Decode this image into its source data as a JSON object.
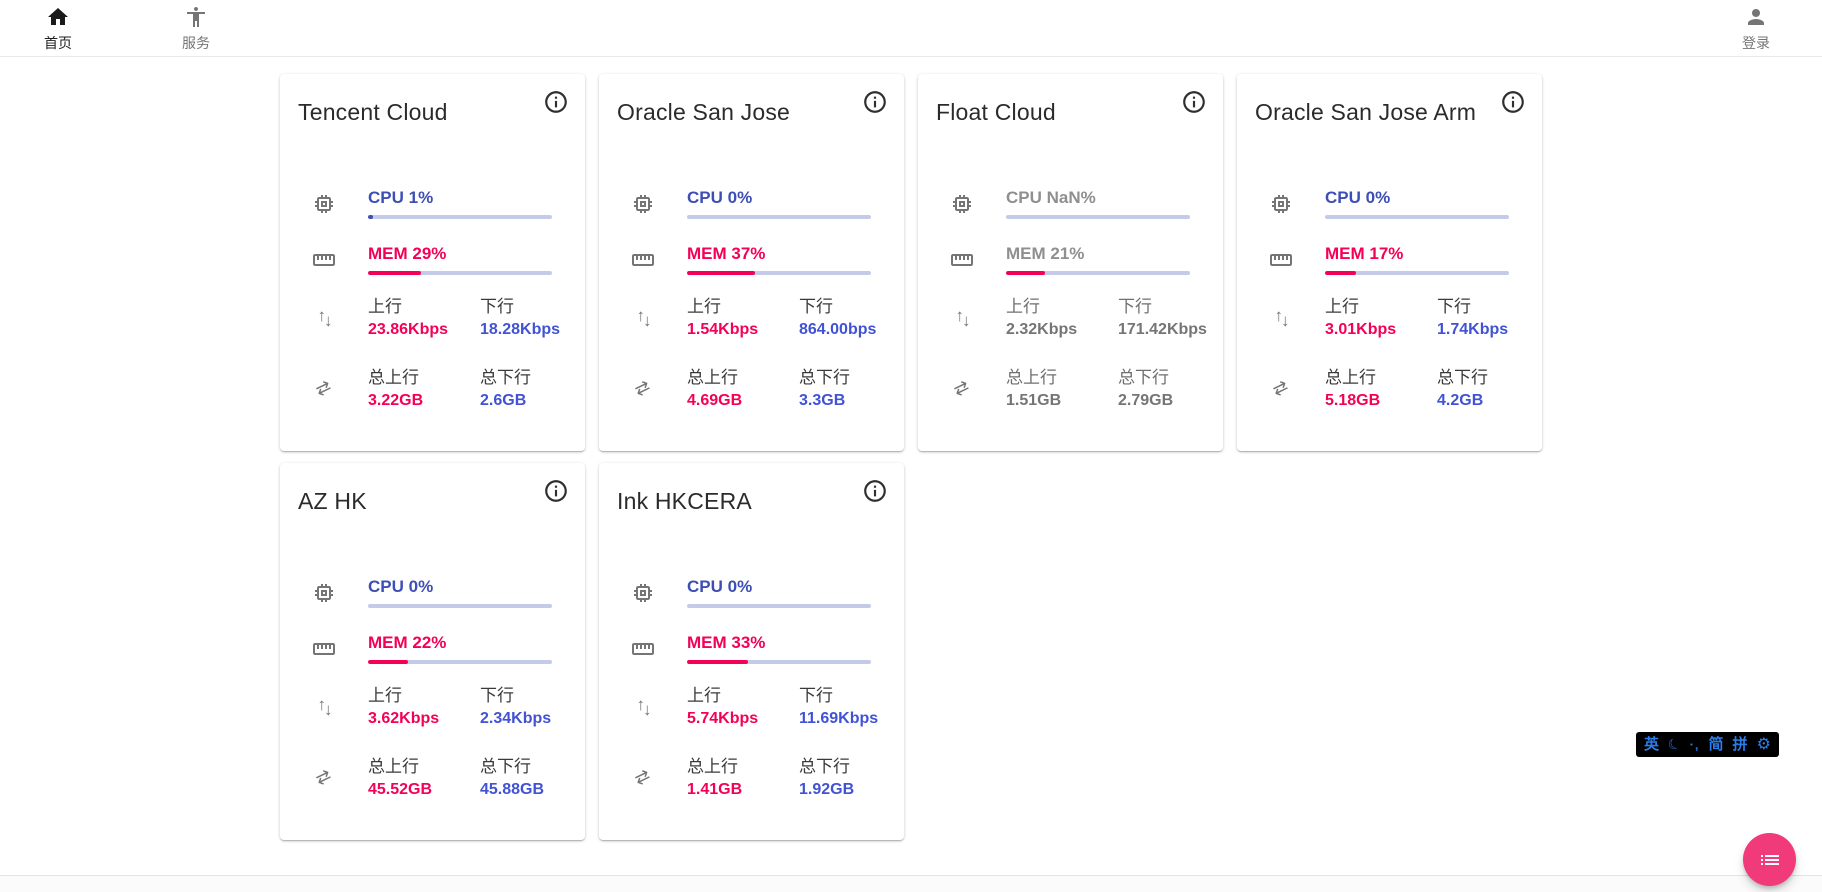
{
  "navbar": {
    "home": {
      "label": "首页"
    },
    "services": {
      "label": "服务"
    },
    "login": {
      "label": "登录"
    }
  },
  "labels": {
    "up": "上行",
    "down": "下行",
    "total_up": "总上行",
    "total_down": "总下行"
  },
  "icons": {
    "arrow_up": "↑",
    "arrow_down": "↓",
    "swap": "⇄",
    "moon": "☾",
    "gear": "⚙",
    "punct": "·‚"
  },
  "ime_bar": {
    "lang": "英",
    "simplified": "简",
    "pinyin": "拼"
  },
  "colors": {
    "accent_blue": "#3d4eb5",
    "value_blue": "#4153d4",
    "accent_pink": "#f50057",
    "bar_track": "#c5cae9",
    "fab_pink": "#f13a7a",
    "ime_blue": "#2b7de9"
  },
  "servers": [
    {
      "name": "Tencent Cloud",
      "cpu_text": "CPU 1%",
      "cpu_pct": 1,
      "mem_text": "MEM 29%",
      "mem_pct": 29,
      "up": "23.86Kbps",
      "down": "18.28Kbps",
      "total_up": "3.22GB",
      "total_down": "2.6GB",
      "online": true
    },
    {
      "name": "Oracle San Jose",
      "cpu_text": "CPU 0%",
      "cpu_pct": 0,
      "mem_text": "MEM 37%",
      "mem_pct": 37,
      "up": "1.54Kbps",
      "down": "864.00bps",
      "total_up": "4.69GB",
      "total_down": "3.3GB",
      "online": true
    },
    {
      "name": "Float Cloud",
      "cpu_text": "CPU NaN%",
      "cpu_pct": 0,
      "mem_text": "MEM 21%",
      "mem_pct": 21,
      "up": "2.32Kbps",
      "down": "171.42Kbps",
      "total_up": "1.51GB",
      "total_down": "2.79GB",
      "online": false
    },
    {
      "name": "Oracle San Jose Arm",
      "cpu_text": "CPU 0%",
      "cpu_pct": 0,
      "mem_text": "MEM 17%",
      "mem_pct": 17,
      "up": "3.01Kbps",
      "down": "1.74Kbps",
      "total_up": "5.18GB",
      "total_down": "4.2GB",
      "online": true
    },
    {
      "name": "AZ HK",
      "cpu_text": "CPU 0%",
      "cpu_pct": 0,
      "mem_text": "MEM 22%",
      "mem_pct": 22,
      "up": "3.62Kbps",
      "down": "2.34Kbps",
      "total_up": "45.52GB",
      "total_down": "45.88GB",
      "online": true
    },
    {
      "name": "Ink HKCERA",
      "cpu_text": "CPU 0%",
      "cpu_pct": 0,
      "mem_text": "MEM 33%",
      "mem_pct": 33,
      "up": "5.74Kbps",
      "down": "11.69Kbps",
      "total_up": "1.41GB",
      "total_down": "1.92GB",
      "online": true
    }
  ]
}
